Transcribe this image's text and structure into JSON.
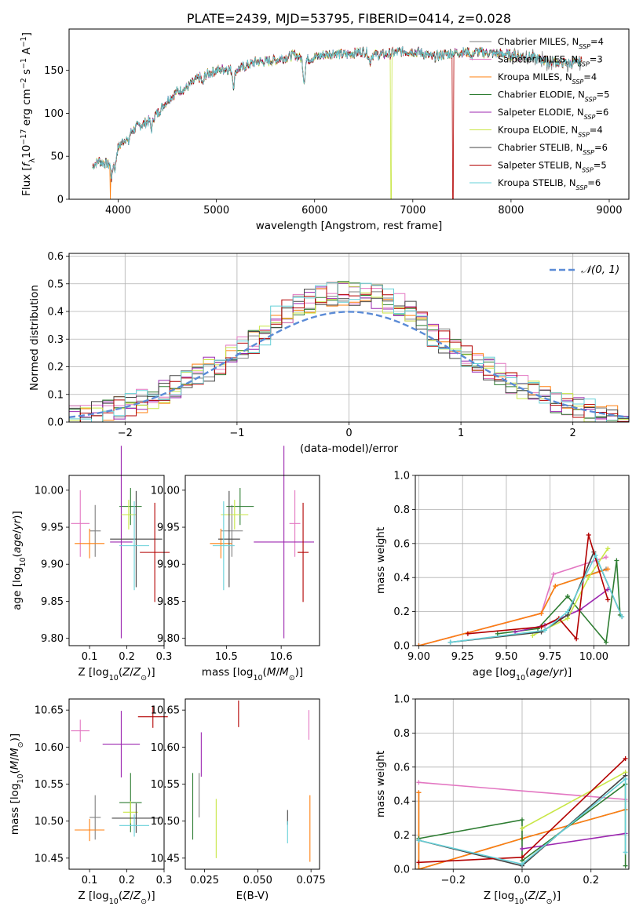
{
  "colors": [
    "#7f7f7f",
    "#e377c2",
    "#ff7f0e",
    "#2e7d32",
    "#9c27b0",
    "#c8e645",
    "#444444",
    "#b30000",
    "#66d0d8"
  ],
  "chart_data": [
    {
      "id": "spectrum",
      "type": "line",
      "title": "PLATE=2439, MJD=53795, FIBERID=0414, z=0.028",
      "xlabel": "wavelength [Angstrom, rest frame]",
      "ylabel": "Flux [f_λ10^-17 erg cm^-2 s^-1 A^-1]",
      "xlim": [
        3500,
        9200
      ],
      "ylim": [
        0,
        198
      ],
      "xticks": [
        "4000",
        "5000",
        "6000",
        "7000",
        "8000",
        "9000"
      ],
      "yticks": [
        "0",
        "50",
        "100",
        "150"
      ],
      "legend_position": "right",
      "legend": [
        {
          "name": "Chabrier MILES",
          "n": "4"
        },
        {
          "name": "Salpeter MILES",
          "n": "3"
        },
        {
          "name": "Kroupa MILES",
          "n": "4"
        },
        {
          "name": "Chabrier ELODIE",
          "n": "5"
        },
        {
          "name": "Salpeter ELODIE",
          "n": "6"
        },
        {
          "name": "Kroupa ELODIE",
          "n": "4"
        },
        {
          "name": "Chabrier STELIB",
          "n": "6"
        },
        {
          "name": "Salpeter STELIB",
          "n": "5"
        },
        {
          "name": "Kroupa STELIB",
          "n": "6"
        }
      ],
      "legend_sub": "SSP",
      "continuum": [
        [
          3740,
          38
        ],
        [
          3800,
          45
        ],
        [
          3900,
          40
        ],
        [
          3950,
          50
        ],
        [
          4000,
          60
        ],
        [
          4100,
          75
        ],
        [
          4200,
          85
        ],
        [
          4300,
          90
        ],
        [
          4400,
          100
        ],
        [
          4500,
          115
        ],
        [
          4600,
          125
        ],
        [
          4700,
          130
        ],
        [
          4800,
          140
        ],
        [
          4900,
          145
        ],
        [
          5000,
          150
        ],
        [
          5100,
          152
        ],
        [
          5200,
          150
        ],
        [
          5300,
          155
        ],
        [
          5400,
          160
        ],
        [
          5500,
          160
        ],
        [
          5600,
          162
        ],
        [
          5700,
          165
        ],
        [
          5800,
          168
        ],
        [
          5900,
          162
        ],
        [
          6000,
          165
        ],
        [
          6100,
          168
        ],
        [
          6200,
          170
        ],
        [
          6300,
          168
        ],
        [
          6400,
          170
        ],
        [
          6500,
          172
        ],
        [
          6600,
          168
        ],
        [
          6700,
          168
        ],
        [
          6800,
          170
        ],
        [
          6900,
          172
        ],
        [
          7000,
          172
        ],
        [
          7100,
          170
        ],
        [
          7200,
          165
        ],
        [
          7300,
          168
        ],
        [
          7400,
          170
        ],
        [
          7600,
          172
        ],
        [
          7800,
          170
        ],
        [
          8000,
          168
        ],
        [
          8200,
          165
        ],
        [
          8400,
          160
        ],
        [
          8600,
          158
        ],
        [
          8700,
          160
        ]
      ],
      "dips": [
        [
          3934,
          22
        ],
        [
          3968,
          18
        ],
        [
          4102,
          10
        ],
        [
          4340,
          12
        ],
        [
          4861,
          10
        ],
        [
          5175,
          18
        ],
        [
          5893,
          25
        ],
        [
          6563,
          10
        ],
        [
          7600,
          8
        ]
      ],
      "drops": [
        [
          3920,
          2
        ],
        [
          6780,
          5
        ],
        [
          7410,
          7
        ]
      ]
    },
    {
      "id": "residuals",
      "type": "histogram",
      "xlabel": "(data-model)/error",
      "ylabel": "Normed distribution",
      "xlim": [
        -2.5,
        2.5
      ],
      "ylim": [
        0,
        0.61
      ],
      "xticks": [
        "−2",
        "−1",
        "0",
        "1",
        "2"
      ],
      "yticks": [
        "0.0",
        "0.1",
        "0.2",
        "0.3",
        "0.4",
        "0.5",
        "0.6"
      ],
      "grid": true,
      "legend_position": "top-right",
      "gauss_label": "𝒩(0, 1)",
      "bin_width": 0.1
    },
    {
      "id": "age_vs_Z",
      "type": "errorbar",
      "xlabel": "Z [log10(Z/Z⊙)]",
      "ylabel": "age [log10(age/yr)]",
      "xlim": [
        0.045,
        0.3
      ],
      "ylim": [
        9.79,
        10.02
      ],
      "xticks": [
        "0.1",
        "0.2",
        "0.3"
      ],
      "yticks": [
        "9.80",
        "9.85",
        "9.90",
        "9.95",
        "10.00"
      ],
      "points": [
        {
          "c": 0,
          "x": 0.115,
          "xe": 0.015,
          "y": 9.945,
          "ye": 0.035
        },
        {
          "c": 1,
          "x": 0.075,
          "xe": 0.025,
          "y": 9.955,
          "ye": 0.045
        },
        {
          "c": 2,
          "x": 0.1,
          "xe": 0.04,
          "y": 9.928,
          "ye": 0.02
        },
        {
          "c": 3,
          "x": 0.21,
          "xe": 0.03,
          "y": 9.978,
          "ye": 0.025
        },
        {
          "c": 4,
          "x": 0.185,
          "xe": 0.03,
          "y": 9.93,
          "ye": 0.13
        },
        {
          "c": 5,
          "x": 0.205,
          "xe": 0.02,
          "y": 9.967,
          "ye": 0.02
        },
        {
          "c": 6,
          "x": 0.225,
          "xe": 0.07,
          "y": 9.934,
          "ye": 0.065
        },
        {
          "c": 7,
          "x": 0.275,
          "xe": 0.04,
          "y": 9.916,
          "ye": 0.067
        },
        {
          "c": 8,
          "x": 0.22,
          "xe": 0.04,
          "y": 9.925,
          "ye": 0.06
        }
      ]
    },
    {
      "id": "age_vs_mass",
      "type": "errorbar",
      "xlabel": "mass [log10(M/M⊙)]",
      "ylabel": "",
      "xlim": [
        10.425,
        10.67
      ],
      "ylim": [
        9.79,
        10.02
      ],
      "xticks": [
        "10.5",
        "10.6"
      ],
      "yticks": [
        "9.80",
        "9.85",
        "9.90",
        "9.95",
        "10.00"
      ],
      "points": [
        {
          "c": 0,
          "x": 10.51,
          "xe": 0.02,
          "y": 9.945,
          "ye": 0.035
        },
        {
          "c": 1,
          "x": 10.625,
          "xe": 0.01,
          "y": 9.955,
          "ye": 0.045
        },
        {
          "c": 2,
          "x": 10.49,
          "xe": 0.02,
          "y": 9.928,
          "ye": 0.02
        },
        {
          "c": 3,
          "x": 10.525,
          "xe": 0.025,
          "y": 9.978,
          "ye": 0.025
        },
        {
          "c": 4,
          "x": 10.605,
          "xe": 0.055,
          "y": 9.93,
          "ye": 0.13
        },
        {
          "c": 5,
          "x": 10.515,
          "xe": 0.025,
          "y": 9.967,
          "ye": 0.02
        },
        {
          "c": 6,
          "x": 10.505,
          "xe": 0.02,
          "y": 9.934,
          "ye": 0.065
        },
        {
          "c": 7,
          "x": 10.64,
          "xe": 0.01,
          "y": 9.916,
          "ye": 0.067
        },
        {
          "c": 8,
          "x": 10.495,
          "xe": 0.02,
          "y": 9.925,
          "ye": 0.06
        }
      ]
    },
    {
      "id": "mass_weight_vs_age",
      "type": "line",
      "xlabel": "age [log10(age/yr)]",
      "ylabel": "mass weight",
      "xlim": [
        8.98,
        10.2
      ],
      "ylim": [
        0,
        1
      ],
      "xticks": [
        "9.00",
        "9.25",
        "9.50",
        "9.75",
        "10.00"
      ],
      "yticks": [
        "0.0",
        "0.2",
        "0.4",
        "0.6",
        "0.8",
        "1.0"
      ],
      "grid": true,
      "series": [
        {
          "c": 0,
          "pts": [
            [
              9.0,
              0.0
            ],
            [
              9.7,
              0.19
            ],
            [
              9.78,
              0.35
            ],
            [
              10.07,
              0.45
            ]
          ]
        },
        {
          "c": 1,
          "pts": [
            [
              9.0,
              0.0
            ],
            [
              9.7,
              0.19
            ],
            [
              9.77,
              0.42
            ],
            [
              10.07,
              0.52
            ]
          ]
        },
        {
          "c": 2,
          "pts": [
            [
              9.0,
              0.0
            ],
            [
              9.7,
              0.19
            ],
            [
              9.78,
              0.35
            ],
            [
              10.08,
              0.45
            ]
          ]
        },
        {
          "c": 3,
          "pts": [
            [
              9.45,
              0.07
            ],
            [
              9.68,
              0.1
            ],
            [
              9.85,
              0.29
            ],
            [
              10.07,
              0.02
            ],
            [
              10.13,
              0.5
            ],
            [
              10.15,
              0.18
            ]
          ]
        },
        {
          "c": 4,
          "pts": [
            [
              9.55,
              0.08
            ],
            [
              9.72,
              0.12
            ],
            [
              9.92,
              0.21
            ],
            [
              10.08,
              0.33
            ]
          ]
        },
        {
          "c": 5,
          "pts": [
            [
              9.65,
              0.06
            ],
            [
              9.85,
              0.16
            ],
            [
              9.97,
              0.4
            ],
            [
              10.08,
              0.57
            ]
          ]
        },
        {
          "c": 6,
          "pts": [
            [
              9.18,
              0.02
            ],
            [
              9.7,
              0.08
            ],
            [
              9.85,
              0.18
            ],
            [
              10.0,
              0.55
            ],
            [
              10.16,
              0.17
            ]
          ]
        },
        {
          "c": 7,
          "pts": [
            [
              9.28,
              0.07
            ],
            [
              9.7,
              0.11
            ],
            [
              9.8,
              0.16
            ],
            [
              9.9,
              0.04
            ],
            [
              9.97,
              0.65
            ],
            [
              10.08,
              0.27
            ]
          ]
        },
        {
          "c": 8,
          "pts": [
            [
              9.18,
              0.02
            ],
            [
              9.72,
              0.09
            ],
            [
              9.85,
              0.2
            ],
            [
              10.01,
              0.53
            ],
            [
              10.16,
              0.17
            ]
          ]
        }
      ]
    },
    {
      "id": "mass_vs_Z",
      "type": "errorbar",
      "xlabel": "Z [log10(Z/Z⊙)]",
      "ylabel": "mass [log10(M/M⊙)]",
      "xlim": [
        0.045,
        0.3
      ],
      "ylim": [
        10.435,
        10.665
      ],
      "xticks": [
        "0.1",
        "0.2",
        "0.3"
      ],
      "yticks": [
        "10.45",
        "10.50",
        "10.55",
        "10.60",
        "10.65"
      ],
      "points": [
        {
          "c": 0,
          "x": 0.115,
          "xe": 0.015,
          "y": 10.505,
          "ye": 0.03
        },
        {
          "c": 1,
          "x": 0.075,
          "xe": 0.025,
          "y": 10.622,
          "ye": 0.015
        },
        {
          "c": 2,
          "x": 0.1,
          "xe": 0.04,
          "y": 10.488,
          "ye": 0.015
        },
        {
          "c": 3,
          "x": 0.21,
          "xe": 0.03,
          "y": 10.525,
          "ye": 0.04
        },
        {
          "c": 4,
          "x": 0.185,
          "xe": 0.05,
          "y": 10.604,
          "ye": 0.045
        },
        {
          "c": 5,
          "x": 0.21,
          "xe": 0.02,
          "y": 10.512,
          "ye": 0.015
        },
        {
          "c": 6,
          "x": 0.225,
          "xe": 0.065,
          "y": 10.504,
          "ye": 0.02
        },
        {
          "c": 7,
          "x": 0.27,
          "xe": 0.04,
          "y": 10.641,
          "ye": 0.015
        },
        {
          "c": 8,
          "x": 0.22,
          "xe": 0.04,
          "y": 10.494,
          "ye": 0.015
        }
      ]
    },
    {
      "id": "mass_vs_ebv",
      "type": "errorbar",
      "xlabel": "E(B-V)",
      "ylabel": "",
      "xlim": [
        0.016,
        0.079
      ],
      "ylim": [
        10.435,
        10.665
      ],
      "xticks": [
        "0.025",
        "0.050",
        "0.075"
      ],
      "yticks": [
        "10.45",
        "10.50",
        "10.55",
        "10.60",
        "10.65"
      ],
      "points": [
        {
          "c": 0,
          "x": 0.0225,
          "xe": 0,
          "y": 10.535,
          "ye": 0.03
        },
        {
          "c": 1,
          "x": 0.074,
          "xe": 0,
          "y": 10.63,
          "ye": 0.02
        },
        {
          "c": 2,
          "x": 0.0745,
          "xe": 0,
          "y": 10.49,
          "ye": 0.045
        },
        {
          "c": 3,
          "x": 0.0195,
          "xe": 0,
          "y": 10.52,
          "ye": 0.045
        },
        {
          "c": 4,
          "x": 0.0235,
          "xe": 0,
          "y": 10.59,
          "ye": 0.03
        },
        {
          "c": 5,
          "x": 0.0305,
          "xe": 0,
          "y": 10.49,
          "ye": 0.04
        },
        {
          "c": 6,
          "x": 0.064,
          "xe": 0,
          "y": 10.505,
          "ye": 0.01
        },
        {
          "c": 7,
          "x": 0.041,
          "xe": 0,
          "y": 10.645,
          "ye": 0.018
        },
        {
          "c": 8,
          "x": 0.064,
          "xe": 0,
          "y": 10.485,
          "ye": 0.015
        }
      ]
    },
    {
      "id": "mass_weight_vs_Z",
      "type": "line",
      "xlabel": "Z [log10(Z/Z⊙)]",
      "ylabel": "mass weight",
      "xlim": [
        -0.31,
        0.31
      ],
      "ylim": [
        0,
        1
      ],
      "xticks": [
        "−0.2",
        "0.0",
        "0.2"
      ],
      "yticks": [
        "0.0",
        "0.2",
        "0.4",
        "0.6",
        "0.8",
        "1.0"
      ],
      "grid": true,
      "series": [
        {
          "c": 0,
          "pts": [
            [
              -0.3,
              0.45
            ],
            [
              -0.3,
              0.0
            ],
            [
              0.0,
              0.18
            ],
            [
              0.3,
              0.35
            ]
          ]
        },
        {
          "c": 1,
          "pts": [
            [
              -0.3,
              0.51
            ],
            [
              0.3,
              0.41
            ]
          ]
        },
        {
          "c": 2,
          "pts": [
            [
              -0.3,
              0.45
            ],
            [
              -0.3,
              0.0
            ],
            [
              0.0,
              0.18
            ],
            [
              0.3,
              0.35
            ]
          ]
        },
        {
          "c": 3,
          "pts": [
            [
              -0.3,
              0.18
            ],
            [
              0.0,
              0.29
            ],
            [
              0.0,
              0.05
            ],
            [
              0.3,
              0.5
            ],
            [
              0.3,
              0.02
            ]
          ]
        },
        {
          "c": 4,
          "pts": [
            [
              0.0,
              0.12
            ],
            [
              0.3,
              0.21
            ]
          ]
        },
        {
          "c": 5,
          "pts": [
            [
              0.0,
              0.24
            ],
            [
              0.3,
              0.57
            ]
          ]
        },
        {
          "c": 6,
          "pts": [
            [
              -0.3,
              0.17
            ],
            [
              0.0,
              0.02
            ],
            [
              0.3,
              0.55
            ]
          ]
        },
        {
          "c": 7,
          "pts": [
            [
              -0.3,
              0.04
            ],
            [
              0.0,
              0.07
            ],
            [
              0.3,
              0.65
            ]
          ]
        },
        {
          "c": 8,
          "pts": [
            [
              -0.3,
              0.17
            ],
            [
              0.0,
              0.03
            ],
            [
              0.3,
              0.53
            ],
            [
              0.3,
              0.1
            ]
          ]
        }
      ]
    }
  ]
}
